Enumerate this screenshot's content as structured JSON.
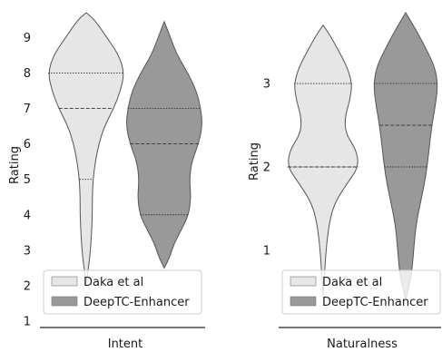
{
  "chart_data": [
    {
      "type": "violin",
      "xlabel": "Intent",
      "ylabel": "Rating",
      "yticks": [
        1,
        2,
        3,
        4,
        5,
        6,
        7,
        8,
        9
      ],
      "ylim": [
        1,
        9.7
      ],
      "grid": false,
      "legend_position": "lower-left",
      "series": [
        {
          "name": "Daka et al",
          "color": "#e6e6e6",
          "quartiles": [
            5,
            7,
            8
          ],
          "range": [
            2.1,
            9.7
          ],
          "profile": [
            [
              2.1,
              0.0
            ],
            [
              2.6,
              0.07
            ],
            [
              3.0,
              0.11
            ],
            [
              3.5,
              0.14
            ],
            [
              4.0,
              0.16
            ],
            [
              4.5,
              0.16
            ],
            [
              5.0,
              0.18
            ],
            [
              5.5,
              0.24
            ],
            [
              6.0,
              0.33
            ],
            [
              6.5,
              0.48
            ],
            [
              7.0,
              0.72
            ],
            [
              7.5,
              0.9
            ],
            [
              8.0,
              1.0
            ],
            [
              8.5,
              0.86
            ],
            [
              9.0,
              0.54
            ],
            [
              9.5,
              0.22
            ],
            [
              9.7,
              0.0
            ]
          ]
        },
        {
          "name": "DeepTC-Enhancer",
          "color": "#999999",
          "quartiles": [
            4,
            6,
            7
          ],
          "range": [
            2.5,
            9.45
          ],
          "profile": [
            [
              2.5,
              0.0
            ],
            [
              2.8,
              0.14
            ],
            [
              3.2,
              0.26
            ],
            [
              3.6,
              0.46
            ],
            [
              4.0,
              0.64
            ],
            [
              4.5,
              0.7
            ],
            [
              5.0,
              0.66
            ],
            [
              5.5,
              0.72
            ],
            [
              6.0,
              0.9
            ],
            [
              6.5,
              1.0
            ],
            [
              7.0,
              0.96
            ],
            [
              7.5,
              0.84
            ],
            [
              8.0,
              0.62
            ],
            [
              8.5,
              0.34
            ],
            [
              9.0,
              0.16
            ],
            [
              9.45,
              0.0
            ]
          ]
        }
      ]
    },
    {
      "type": "violin",
      "xlabel": "Naturalness",
      "ylabel": "Rating",
      "yticks": [
        1,
        2,
        3
      ],
      "ylim": [
        0.15,
        3.85
      ],
      "grid": false,
      "legend_position": "lower-left",
      "series": [
        {
          "name": "Daka et al",
          "color": "#e6e6e6",
          "quartiles": [
            2,
            2,
            3
          ],
          "range": [
            0.45,
            3.7
          ],
          "profile": [
            [
              0.45,
              0.0
            ],
            [
              0.8,
              0.05
            ],
            [
              1.1,
              0.1
            ],
            [
              1.4,
              0.2
            ],
            [
              1.6,
              0.36
            ],
            [
              1.8,
              0.66
            ],
            [
              2.0,
              0.98
            ],
            [
              2.2,
              0.92
            ],
            [
              2.4,
              0.62
            ],
            [
              2.6,
              0.6
            ],
            [
              2.8,
              0.74
            ],
            [
              3.0,
              0.8
            ],
            [
              3.2,
              0.66
            ],
            [
              3.4,
              0.42
            ],
            [
              3.6,
              0.16
            ],
            [
              3.7,
              0.0
            ]
          ]
        },
        {
          "name": "DeepTC-Enhancer",
          "color": "#999999",
          "quartiles": [
            2,
            2.5,
            3
          ],
          "range": [
            0.4,
            3.85
          ],
          "profile": [
            [
              0.4,
              0.0
            ],
            [
              0.7,
              0.16
            ],
            [
              1.0,
              0.22
            ],
            [
              1.3,
              0.28
            ],
            [
              1.6,
              0.42
            ],
            [
              1.9,
              0.56
            ],
            [
              2.2,
              0.64
            ],
            [
              2.5,
              0.72
            ],
            [
              2.8,
              0.84
            ],
            [
              3.0,
              0.88
            ],
            [
              3.2,
              0.8
            ],
            [
              3.4,
              0.58
            ],
            [
              3.6,
              0.34
            ],
            [
              3.8,
              0.07
            ],
            [
              3.85,
              0.0
            ]
          ]
        }
      ]
    }
  ]
}
